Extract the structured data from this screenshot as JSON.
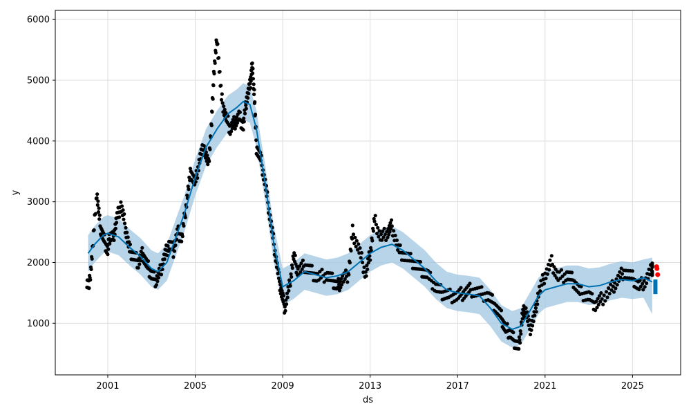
{
  "chart_data": {
    "type": "line",
    "title": "",
    "xlabel": "ds",
    "ylabel": "y",
    "xlim": [
      1998.6,
      2027.2
    ],
    "ylim": [
      150,
      6150
    ],
    "grid": true,
    "legend": "none",
    "x_ticks": [
      {
        "value": 2001,
        "label": "2001"
      },
      {
        "value": 2005,
        "label": "2005"
      },
      {
        "value": 2009,
        "label": "2009"
      },
      {
        "value": 2013,
        "label": "2013"
      },
      {
        "value": 2017,
        "label": "2017"
      },
      {
        "value": 2021,
        "label": "2021"
      },
      {
        "value": 2025,
        "label": "2025"
      }
    ],
    "y_ticks": [
      {
        "value": 1000,
        "label": "1000"
      },
      {
        "value": 2000,
        "label": "2000"
      },
      {
        "value": 3000,
        "label": "3000"
      },
      {
        "value": 4000,
        "label": "4000"
      },
      {
        "value": 5000,
        "label": "5000"
      },
      {
        "value": 6000,
        "label": "6000"
      }
    ],
    "colors": {
      "observed": "#000000",
      "forecast": "#0072B2",
      "interval": "#9fc6e2",
      "highlight": "#ff0000",
      "grid": "#dddddd"
    },
    "forecast": {
      "x": [
        2000.1,
        2000.4,
        2000.8,
        2001.0,
        2001.5,
        2002.0,
        2002.5,
        2003.0,
        2003.3,
        2003.7,
        2004.0,
        2004.5,
        2005.0,
        2005.5,
        2006.0,
        2006.5,
        2006.9,
        2007.2,
        2007.5,
        2007.8,
        2008.2,
        2008.6,
        2009.0,
        2009.5,
        2010.0,
        2010.5,
        2011.0,
        2011.5,
        2012.0,
        2012.5,
        2013.0,
        2013.5,
        2014.0,
        2014.5,
        2015.0,
        2015.5,
        2016.0,
        2016.5,
        2017.0,
        2017.5,
        2018.0,
        2018.5,
        2019.0,
        2019.5,
        2019.9,
        2020.3,
        2020.7,
        2021.0,
        2021.5,
        2022.0,
        2022.5,
        2023.0,
        2023.5,
        2024.0,
        2024.5,
        2025.0,
        2025.5,
        2025.9
      ],
      "yhat": [
        2150,
        2300,
        2450,
        2480,
        2420,
        2250,
        2100,
        1900,
        1850,
        2000,
        2300,
        2800,
        3400,
        3900,
        4200,
        4450,
        4550,
        4650,
        4600,
        4200,
        3300,
        2300,
        1600,
        1700,
        1850,
        1800,
        1750,
        1780,
        1850,
        2000,
        2150,
        2250,
        2300,
        2200,
        2050,
        1900,
        1700,
        1550,
        1500,
        1480,
        1450,
        1250,
        1000,
        900,
        950,
        1200,
        1450,
        1550,
        1600,
        1650,
        1650,
        1600,
        1620,
        1680,
        1720,
        1700,
        1750,
        1680
      ],
      "lower": [
        1850,
        2000,
        2150,
        2180,
        2120,
        1950,
        1800,
        1600,
        1550,
        1700,
        2000,
        2500,
        3100,
        3600,
        3900,
        4150,
        4250,
        4350,
        4300,
        3900,
        3000,
        2000,
        1300,
        1400,
        1550,
        1500,
        1450,
        1480,
        1550,
        1700,
        1850,
        1950,
        2000,
        1900,
        1750,
        1600,
        1400,
        1250,
        1200,
        1180,
        1150,
        950,
        700,
        600,
        650,
        900,
        1150,
        1250,
        1300,
        1350,
        1350,
        1300,
        1320,
        1380,
        1420,
        1400,
        1420,
        1150
      ],
      "upper": [
        2450,
        2600,
        2750,
        2780,
        2720,
        2550,
        2400,
        2200,
        2150,
        2300,
        2600,
        3100,
        3700,
        4200,
        4500,
        4750,
        4850,
        4950,
        4900,
        4500,
        3600,
        2600,
        1900,
        2000,
        2150,
        2100,
        2050,
        2080,
        2150,
        2300,
        2450,
        2550,
        2600,
        2500,
        2350,
        2200,
        2000,
        1850,
        1800,
        1780,
        1750,
        1550,
        1300,
        1200,
        1250,
        1500,
        1750,
        1850,
        1900,
        1950,
        1950,
        1900,
        1920,
        1980,
        2020,
        2000,
        2050,
        2080
      ]
    },
    "observed": {
      "x": [
        2000.05,
        2000.15,
        2000.3,
        2000.5,
        2000.65,
        2000.8,
        2001.0,
        2001.1,
        2001.25,
        2001.4,
        2001.6,
        2001.8,
        2002.0,
        2002.2,
        2002.4,
        2002.6,
        2002.8,
        2003.0,
        2003.2,
        2003.4,
        2003.6,
        2003.8,
        2004.0,
        2004.2,
        2004.4,
        2004.6,
        2004.8,
        2005.0,
        2005.2,
        2005.4,
        2005.6,
        2005.75,
        2005.85,
        2006.0,
        2006.2,
        2006.4,
        2006.6,
        2006.8,
        2007.0,
        2007.2,
        2007.35,
        2007.5,
        2007.6,
        2007.7,
        2007.8,
        2008.0,
        2008.2,
        2008.4,
        2008.6,
        2008.8,
        2008.95,
        2009.1,
        2009.3,
        2009.5,
        2009.7,
        2010.0,
        2010.3,
        2010.6,
        2011.0,
        2011.3,
        2011.5,
        2011.7,
        2012.0,
        2012.2,
        2012.5,
        2012.8,
        2013.0,
        2013.2,
        2013.5,
        2013.8,
        2014.0,
        2014.3,
        2014.6,
        2015.0,
        2015.3,
        2015.6,
        2016.0,
        2016.3,
        2016.6,
        2017.0,
        2017.3,
        2017.6,
        2018.0,
        2018.4,
        2018.7,
        2019.0,
        2019.2,
        2019.4,
        2019.6,
        2019.8,
        2019.95,
        2020.1,
        2020.3,
        2020.5,
        2020.7,
        2021.0,
        2021.3,
        2021.6,
        2022.0,
        2022.3,
        2022.6,
        2023.0,
        2023.3,
        2023.6,
        2024.0,
        2024.3,
        2024.6,
        2025.0,
        2025.3,
        2025.6,
        2025.9
      ],
      "y": [
        1700,
        1600,
        2200,
        3150,
        2600,
        2400,
        2200,
        2450,
        2400,
        2700,
        2950,
        2600,
        2200,
        2100,
        2000,
        2150,
        1950,
        1800,
        1700,
        1850,
        2100,
        2300,
        2200,
        2500,
        2400,
        3000,
        3500,
        3300,
        3700,
        3900,
        3600,
        4300,
        5100,
        5700,
        4700,
        4400,
        4200,
        4300,
        4400,
        4250,
        4700,
        4900,
        5250,
        4800,
        3900,
        3700,
        3300,
        2800,
        2300,
        1800,
        1500,
        1250,
        1600,
        2100,
        1850,
        1950,
        1850,
        1750,
        1800,
        1700,
        1600,
        1700,
        1800,
        2500,
        2200,
        1800,
        2150,
        2700,
        2400,
        2500,
        2600,
        2200,
        2100,
        2000,
        1900,
        1800,
        1600,
        1500,
        1450,
        1450,
        1500,
        1550,
        1500,
        1450,
        1300,
        1100,
        900,
        850,
        700,
        600,
        1100,
        1250,
        900,
        1100,
        1500,
        1800,
        2000,
        1750,
        1800,
        1700,
        1500,
        1450,
        1300,
        1400,
        1550,
        1700,
        1850,
        1750,
        1600,
        1700,
        1900
      ]
    },
    "highlight": {
      "x": [
        2026.1,
        2026.12,
        2026.15
      ],
      "y": [
        1930,
        1900,
        1800
      ]
    }
  }
}
